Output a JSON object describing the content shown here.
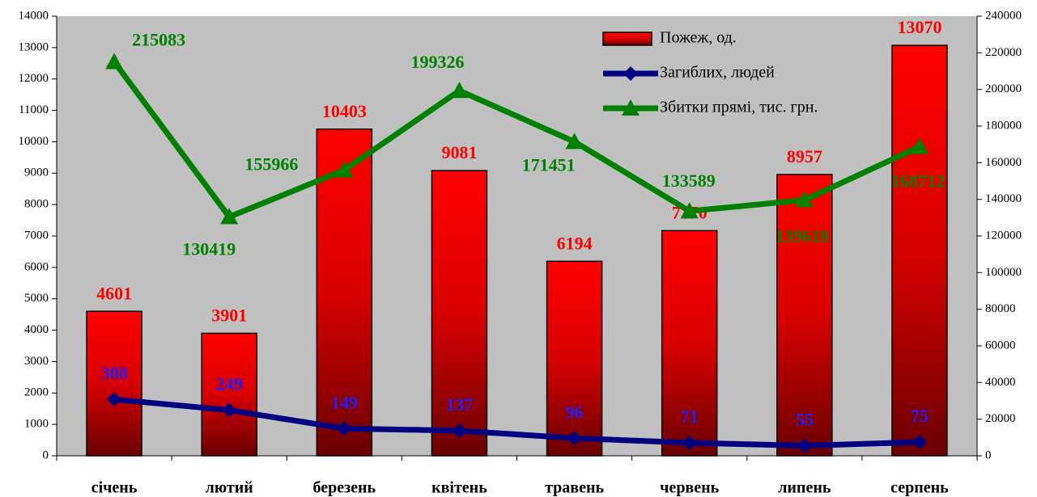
{
  "chart_data": {
    "type": "bar_line",
    "categories": [
      "січень",
      "лютий",
      "березень",
      "квітень",
      "травень",
      "червень",
      "липень",
      "серпень"
    ],
    "series": [
      {
        "name": "Пожеж, од.",
        "type": "bar",
        "color": "#ff0000",
        "values": [
          4601,
          3901,
          10403,
          9081,
          6194,
          7170,
          8957,
          13070
        ]
      },
      {
        "name": "Загиблих, людей",
        "type": "line",
        "color": "#000080",
        "label_color": "#1f1fff",
        "axis": "y3",
        "marker": "diamond",
        "values": [
          308,
          249,
          149,
          137,
          96,
          71,
          55,
          75
        ]
      },
      {
        "name": "Збитки прямі, тис. грн.",
        "type": "line",
        "color": "#008000",
        "label_color": "#008000",
        "axis": "y2",
        "marker": "triangle",
        "values": [
          215083,
          130419,
          155966,
          199326,
          171451,
          133589,
          139618,
          168712
        ]
      }
    ],
    "ylim": [
      0,
      14000
    ],
    "yticks": [
      0,
      1000,
      2000,
      3000,
      4000,
      5000,
      6000,
      7000,
      8000,
      9000,
      10000,
      11000,
      12000,
      13000,
      14000
    ],
    "y2lim": [
      0,
      240000
    ],
    "y2ticks": [
      0,
      20000,
      40000,
      60000,
      80000,
      100000,
      120000,
      140000,
      160000,
      180000,
      200000,
      220000,
      240000
    ],
    "y3lim": [
      0,
      2400
    ],
    "legend": "upper right",
    "background": "#c0c0c0"
  }
}
